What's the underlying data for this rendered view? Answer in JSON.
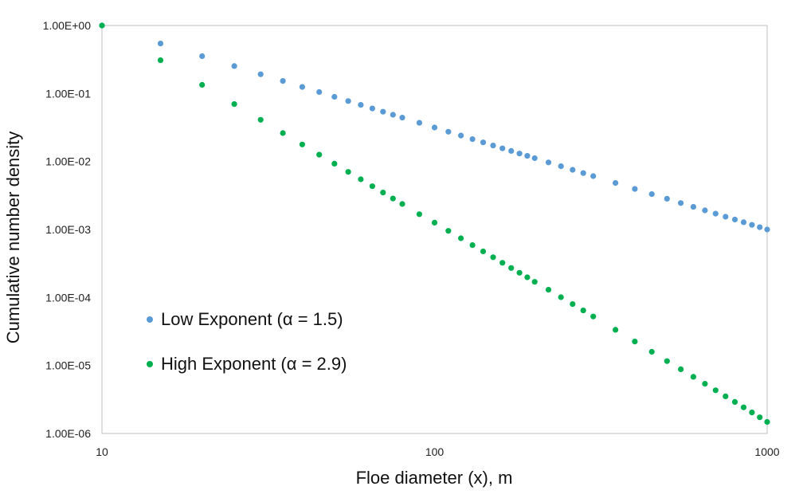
{
  "chart_data": {
    "type": "scatter",
    "title": "",
    "xlabel": "Floe diameter (x), m",
    "ylabel": "Cumulative number density",
    "x_scale": "log",
    "y_scale": "log",
    "xlim": [
      10,
      1000
    ],
    "ylim": [
      1e-06,
      1
    ],
    "x_ticks": [
      "10",
      "100",
      "1000"
    ],
    "y_ticks": [
      "1.00E-06",
      "1.00E-05",
      "1.00E-04",
      "1.00E-03",
      "1.00E-02",
      "1.00E-01",
      "1.00E+00"
    ],
    "grid": false,
    "legend_position": "bottom-left",
    "x": [
      10,
      15,
      20,
      25,
      30,
      35,
      40,
      45,
      50,
      55,
      60,
      65,
      70,
      75,
      80,
      90,
      100,
      110,
      120,
      130,
      140,
      150,
      160,
      170,
      180,
      190,
      200,
      220,
      240,
      260,
      280,
      300,
      350,
      400,
      450,
      500,
      550,
      600,
      650,
      700,
      750,
      800,
      850,
      900,
      950,
      1000
    ],
    "series": [
      {
        "name": "Low Exponent (α = 1.5)",
        "color": "#5b9bd5",
        "values": [
          1,
          0.544,
          0.354,
          0.253,
          0.192,
          0.153,
          0.125,
          0.105,
          0.0894,
          0.0775,
          0.068,
          0.0603,
          0.054,
          0.0487,
          0.0442,
          0.0371,
          0.0316,
          0.0274,
          0.0241,
          0.0213,
          0.0191,
          0.0172,
          0.0156,
          0.0143,
          0.0131,
          0.0121,
          0.0112,
          0.00969,
          0.00851,
          0.00754,
          0.00675,
          0.00609,
          0.00483,
          0.00395,
          0.00331,
          0.00283,
          0.00245,
          0.00215,
          0.00191,
          0.00171,
          0.00154,
          0.0014,
          0.00128,
          0.00117,
          0.00108,
          0.001
        ]
      },
      {
        "name": "High Exponent (α = 2.9)",
        "color": "#00b050",
        "values": [
          1,
          0.308,
          0.134,
          0.0699,
          0.0411,
          0.0262,
          0.0178,
          0.0126,
          0.00929,
          0.00704,
          0.00547,
          0.00433,
          0.0035,
          0.00286,
          0.00237,
          0.00168,
          0.00126,
          0.000955,
          0.000744,
          0.00059,
          0.000476,
          0.000391,
          0.000324,
          0.000272,
          0.000231,
          0.000198,
          0.00017,
          0.00013,
          0.000101,
          8.01e-05,
          6.44e-05,
          5.25e-05,
          3.35e-05,
          2.25e-05,
          1.59e-05,
          1.16e-05,
          8.81e-06,
          6.82e-06,
          5.38e-06,
          4.32e-06,
          3.52e-06,
          2.91e-06,
          2.42e-06,
          2.04e-06,
          1.73e-06,
          1.48e-06
        ]
      }
    ]
  }
}
